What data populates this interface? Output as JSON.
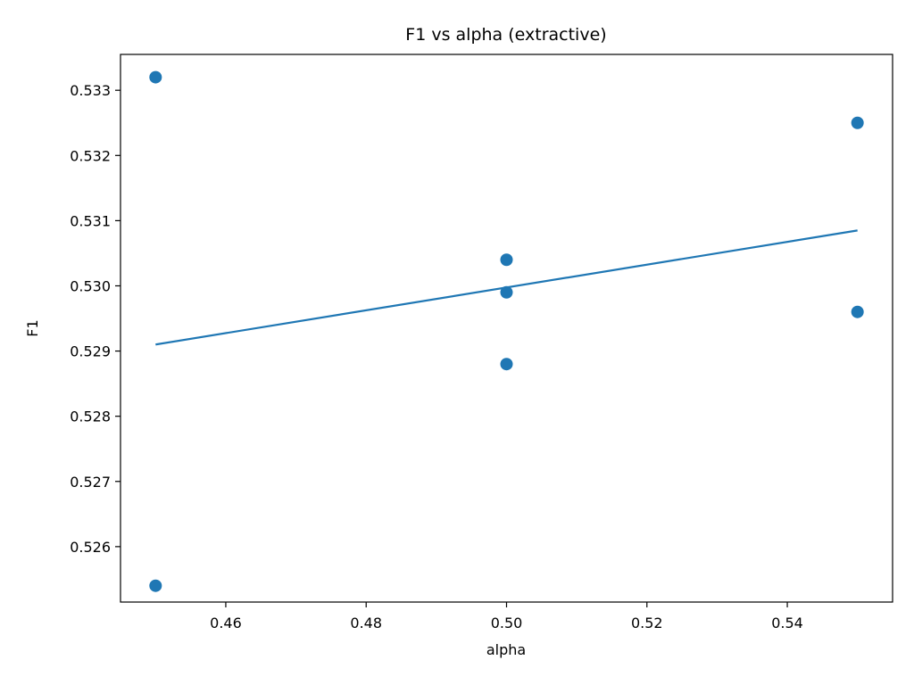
{
  "chart_data": {
    "type": "scatter",
    "title": "F1 vs alpha (extractive)",
    "xlabel": "alpha",
    "ylabel": "F1",
    "xlim": [
      0.445,
      0.555
    ],
    "ylim": [
      0.52515,
      0.53355
    ],
    "xticks": [
      0.46,
      0.48,
      0.5,
      0.52,
      0.54
    ],
    "xtick_labels": [
      "0.46",
      "0.48",
      "0.50",
      "0.52",
      "0.54"
    ],
    "yticks": [
      0.526,
      0.527,
      0.528,
      0.529,
      0.53,
      0.531,
      0.532,
      0.533
    ],
    "ytick_labels": [
      "0.526",
      "0.527",
      "0.528",
      "0.529",
      "0.530",
      "0.531",
      "0.532",
      "0.533"
    ],
    "grid": false,
    "series": [
      {
        "type": "scatter",
        "color": "#1f77b4",
        "points": [
          {
            "x": 0.45,
            "y": 0.5332
          },
          {
            "x": 0.45,
            "y": 0.5254
          },
          {
            "x": 0.5,
            "y": 0.5304
          },
          {
            "x": 0.5,
            "y": 0.5299
          },
          {
            "x": 0.5,
            "y": 0.5288
          },
          {
            "x": 0.55,
            "y": 0.5325
          },
          {
            "x": 0.55,
            "y": 0.5296
          }
        ]
      },
      {
        "type": "line",
        "color": "#1f77b4",
        "points": [
          {
            "x": 0.45,
            "y": 0.5291
          },
          {
            "x": 0.55,
            "y": 0.53085
          }
        ]
      }
    ]
  }
}
